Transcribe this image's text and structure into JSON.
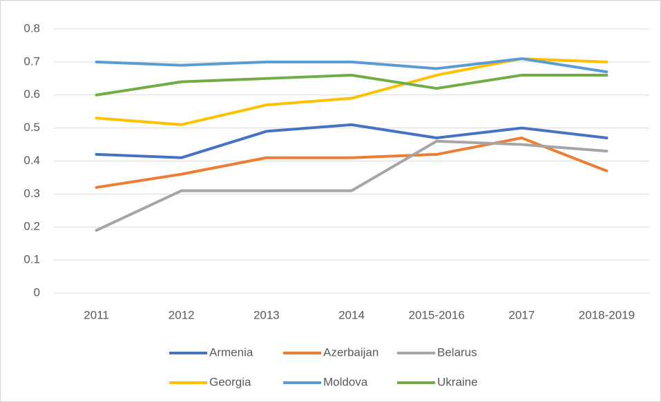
{
  "chart_data": {
    "type": "line",
    "categories": [
      "2011",
      "2012",
      "2013",
      "2014",
      "2015-2016",
      "2017",
      "2018-2019"
    ],
    "series": [
      {
        "name": "Armenia",
        "color": "#4472c4",
        "values": [
          0.42,
          0.41,
          0.49,
          0.51,
          0.47,
          0.5,
          0.47
        ]
      },
      {
        "name": "Azerbaijan",
        "color": "#ed7d31",
        "values": [
          0.32,
          0.36,
          0.41,
          0.41,
          0.42,
          0.47,
          0.37
        ]
      },
      {
        "name": "Belarus",
        "color": "#a5a5a5",
        "values": [
          0.19,
          0.31,
          0.31,
          0.31,
          0.46,
          0.45,
          0.43
        ]
      },
      {
        "name": "Georgia",
        "color": "#ffc000",
        "values": [
          0.53,
          0.51,
          0.57,
          0.59,
          0.66,
          0.71,
          0.7
        ]
      },
      {
        "name": "Moldova",
        "color": "#5b9bd5",
        "values": [
          0.7,
          0.69,
          0.7,
          0.7,
          0.68,
          0.71,
          0.67
        ]
      },
      {
        "name": "Ukraine",
        "color": "#70ad47",
        "values": [
          0.6,
          0.64,
          0.65,
          0.66,
          0.62,
          0.66,
          0.66
        ]
      }
    ],
    "ylim": [
      0,
      0.8
    ],
    "yticks": [
      0,
      0.1,
      0.2,
      0.3,
      0.4,
      0.5,
      0.6,
      0.7,
      0.8
    ],
    "grid": true,
    "legend": "bottom"
  }
}
